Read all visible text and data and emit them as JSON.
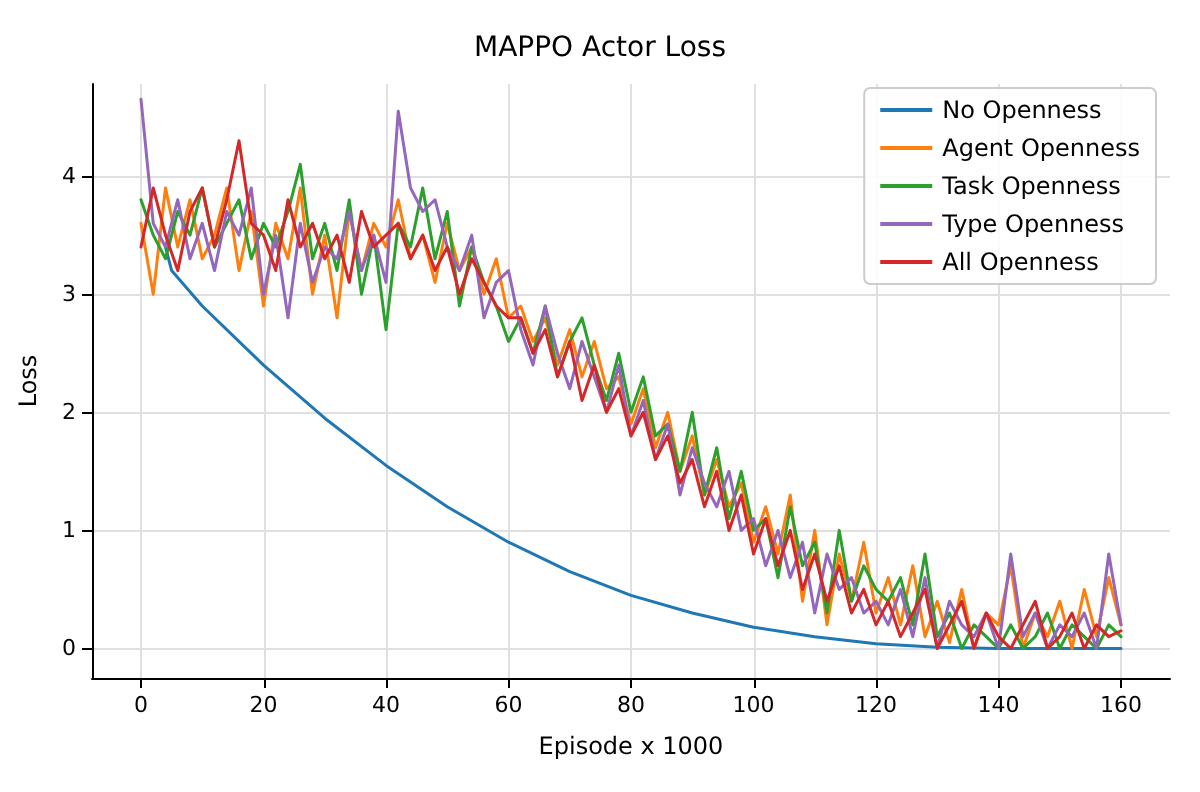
{
  "chart_data": {
    "type": "line",
    "title": "MAPPO Actor Loss",
    "xlabel": "Episode x 1000",
    "ylabel": "Loss",
    "xlim": [
      -8,
      168
    ],
    "ylim": [
      -0.25,
      4.78
    ],
    "xticks": [
      0,
      20,
      40,
      60,
      80,
      100,
      120,
      140,
      160
    ],
    "yticks": [
      0,
      1,
      2,
      3,
      4
    ],
    "grid": true,
    "legend": "top right",
    "marker": "none",
    "line_style": "solid",
    "x": [
      0,
      2,
      4,
      6,
      8,
      10,
      12,
      14,
      16,
      18,
      20,
      22,
      24,
      26,
      28,
      30,
      32,
      34,
      36,
      38,
      40,
      42,
      44,
      46,
      48,
      50,
      52,
      54,
      56,
      58,
      60,
      62,
      64,
      66,
      68,
      70,
      72,
      74,
      76,
      78,
      80,
      82,
      84,
      86,
      88,
      90,
      92,
      94,
      96,
      98,
      100,
      102,
      104,
      106,
      108,
      110,
      112,
      114,
      116,
      118,
      120,
      122,
      124,
      126,
      128,
      130,
      132,
      134,
      136,
      138,
      140,
      142,
      144,
      146,
      148,
      150,
      152,
      154,
      156,
      158,
      160
    ],
    "series": [
      {
        "name": "No Openness",
        "color": "#1f77b4",
        "x": [
          4,
          5,
          10,
          20,
          30,
          40,
          50,
          60,
          70,
          80,
          90,
          100,
          110,
          120,
          130,
          140,
          150,
          160
        ],
        "values": [
          3.4,
          3.2,
          2.9,
          2.4,
          1.95,
          1.55,
          1.2,
          0.9,
          0.65,
          0.45,
          0.3,
          0.18,
          0.1,
          0.04,
          0.01,
          0,
          0,
          0
        ]
      },
      {
        "name": "Agent Openness",
        "color": "#ff7f0e",
        "values": [
          3.6,
          3.0,
          3.9,
          3.4,
          3.8,
          3.3,
          3.5,
          3.9,
          3.2,
          3.7,
          2.9,
          3.6,
          3.3,
          3.9,
          3.0,
          3.5,
          2.8,
          3.7,
          3.2,
          3.6,
          3.4,
          3.8,
          3.3,
          3.5,
          3.1,
          3.6,
          3.2,
          3.4,
          3.0,
          3.3,
          2.8,
          2.9,
          2.6,
          2.8,
          2.4,
          2.7,
          2.3,
          2.6,
          2.2,
          2.3,
          1.9,
          2.2,
          1.7,
          2.0,
          1.5,
          1.8,
          1.3,
          1.6,
          1.2,
          1.4,
          0.9,
          1.2,
          0.8,
          1.3,
          0.4,
          1.0,
          0.2,
          0.8,
          0.4,
          0.9,
          0.3,
          0.6,
          0.2,
          0.7,
          0.1,
          0.4,
          0.05,
          0.5,
          0.0,
          0.3,
          0.2,
          0.7,
          0.0,
          0.3,
          0.1,
          0.4,
          0.0,
          0.5,
          0.1,
          0.6,
          0.2
        ]
      },
      {
        "name": "Task Openness",
        "color": "#2ca02c",
        "values": [
          3.8,
          3.5,
          3.3,
          3.7,
          3.5,
          3.9,
          3.4,
          3.6,
          3.8,
          3.3,
          3.6,
          3.4,
          3.7,
          4.1,
          3.3,
          3.6,
          3.2,
          3.8,
          3.0,
          3.5,
          2.7,
          3.6,
          3.4,
          3.9,
          3.3,
          3.7,
          2.9,
          3.4,
          3.1,
          2.9,
          2.6,
          2.8,
          2.5,
          2.9,
          2.3,
          2.6,
          2.8,
          2.4,
          2.1,
          2.5,
          2.0,
          2.3,
          1.8,
          1.9,
          1.5,
          2.0,
          1.3,
          1.7,
          1.1,
          1.5,
          1.0,
          1.1,
          0.6,
          1.2,
          0.7,
          0.9,
          0.3,
          1.0,
          0.4,
          0.7,
          0.5,
          0.4,
          0.6,
          0.2,
          0.8,
          0.1,
          0.3,
          0.0,
          0.2,
          0.1,
          0.0,
          0.2,
          0.0,
          0.1,
          0.3,
          0.0,
          0.2,
          0.1,
          0.0,
          0.2,
          0.1
        ]
      },
      {
        "name": "Type Openness",
        "color": "#9467bd",
        "values": [
          4.65,
          3.6,
          3.4,
          3.8,
          3.3,
          3.6,
          3.2,
          3.7,
          3.5,
          3.9,
          3.0,
          3.5,
          2.8,
          3.6,
          3.1,
          3.4,
          3.3,
          3.7,
          3.2,
          3.5,
          3.1,
          4.55,
          3.9,
          3.7,
          3.8,
          3.4,
          3.2,
          3.5,
          2.8,
          3.1,
          3.2,
          2.7,
          2.4,
          2.9,
          2.5,
          2.2,
          2.6,
          2.3,
          2.0,
          2.4,
          1.8,
          2.1,
          1.6,
          1.9,
          1.3,
          1.7,
          1.4,
          1.2,
          1.5,
          1.0,
          1.1,
          0.7,
          1.0,
          0.6,
          0.9,
          0.3,
          0.8,
          0.5,
          0.6,
          0.3,
          0.4,
          0.2,
          0.5,
          0.1,
          0.6,
          0.0,
          0.4,
          0.2,
          0.1,
          0.3,
          0.0,
          0.8,
          0.1,
          0.3,
          0.0,
          0.2,
          0.1,
          0.3,
          0.0,
          0.8,
          0.2
        ]
      },
      {
        "name": "All Openness",
        "color": "#d62728",
        "values": [
          3.4,
          3.9,
          3.5,
          3.2,
          3.7,
          3.9,
          3.4,
          3.8,
          4.3,
          3.6,
          3.5,
          3.2,
          3.8,
          3.4,
          3.6,
          3.3,
          3.5,
          3.1,
          3.7,
          3.4,
          3.5,
          3.6,
          3.3,
          3.5,
          3.2,
          3.4,
          3.0,
          3.3,
          3.1,
          2.9,
          2.8,
          2.8,
          2.5,
          2.7,
          2.3,
          2.6,
          2.1,
          2.4,
          2.0,
          2.2,
          1.8,
          2.0,
          1.6,
          1.8,
          1.4,
          1.6,
          1.2,
          1.5,
          1.0,
          1.3,
          0.8,
          1.1,
          0.7,
          1.0,
          0.5,
          0.8,
          0.4,
          0.7,
          0.3,
          0.5,
          0.2,
          0.4,
          0.1,
          0.3,
          0.5,
          0.0,
          0.2,
          0.4,
          0.0,
          0.3,
          0.1,
          0.0,
          0.2,
          0.4,
          0.0,
          0.1,
          0.3,
          0.0,
          0.2,
          0.1,
          0.15
        ]
      }
    ]
  }
}
